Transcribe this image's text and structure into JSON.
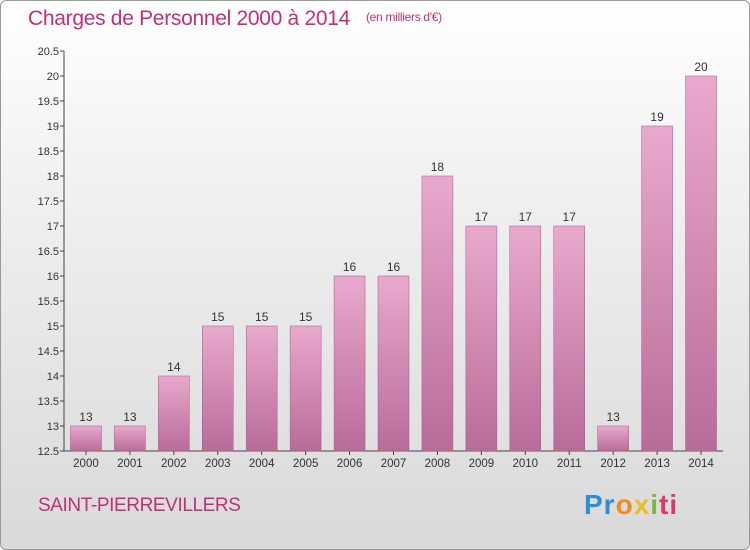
{
  "header": {
    "title": "Charges de Personnel 2000 à 2014",
    "unit": "(en milliers d'€)"
  },
  "footer": {
    "commune": "SAINT-PIERREVILLERS",
    "logo_text": "Proxiti",
    "logo_parts": [
      "Pr",
      "o",
      "x",
      "i",
      "ti"
    ]
  },
  "colors": {
    "accent": "#c0307a",
    "bar_top": "#e9a9cd",
    "bar_bottom": "#b86c98",
    "bar_edge": "#a8588a"
  },
  "chart_data": {
    "type": "bar",
    "categories": [
      "2000",
      "2001",
      "2002",
      "2003",
      "2004",
      "2005",
      "2006",
      "2007",
      "2008",
      "2009",
      "2010",
      "2011",
      "2012",
      "2013",
      "2014"
    ],
    "values": [
      13,
      13,
      14,
      15,
      15,
      15,
      16,
      16,
      18,
      17,
      17,
      17,
      13,
      19,
      20
    ],
    "data_labels": [
      "13",
      "13",
      "14",
      "15",
      "15",
      "15",
      "16",
      "16",
      "18",
      "17",
      "17",
      "17",
      "13",
      "19",
      "20"
    ],
    "title": "Charges de Personnel 2000 à 2014",
    "ylim": [
      12.5,
      20.5
    ],
    "yticks": [
      12.5,
      13,
      13.5,
      14,
      14.5,
      15,
      15.5,
      16,
      16.5,
      17,
      17.5,
      18,
      18.5,
      19,
      19.5,
      20,
      20.5
    ],
    "ytick_labels": [
      "12.5",
      "13",
      "13.5",
      "14",
      "14.5",
      "15",
      "15.5",
      "16",
      "16.5",
      "17",
      "17.5",
      "18",
      "18.5",
      "19",
      "19.5",
      "20",
      "20.5"
    ],
    "grid": false
  }
}
